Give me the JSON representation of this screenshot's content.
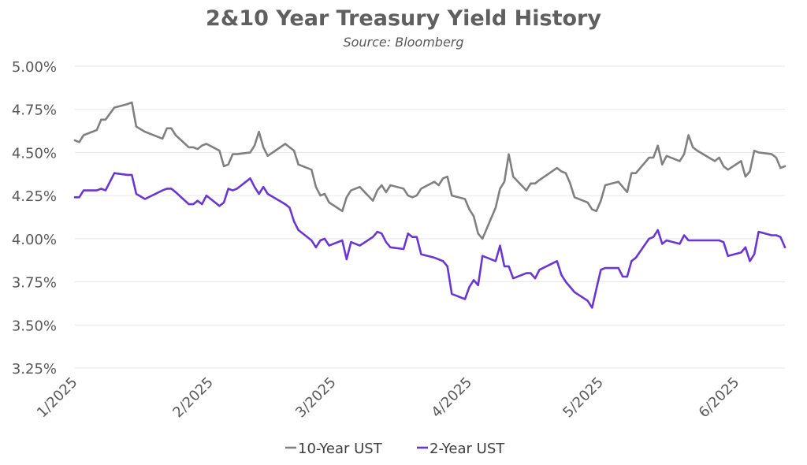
{
  "chart_data": {
    "type": "line",
    "title": "2&10 Year Treasury Yield History",
    "subtitle": "Source: Bloomberg",
    "xlabel": "",
    "ylabel": "",
    "ylim": [
      3.25,
      5.0
    ],
    "y_ticks": [
      "3.25%",
      "3.50%",
      "3.75%",
      "4.00%",
      "4.25%",
      "4.50%",
      "4.75%",
      "5.00%"
    ],
    "y_tick_values": [
      3.25,
      3.5,
      3.75,
      4.0,
      4.25,
      4.5,
      4.75,
      5.0
    ],
    "x_ticks": [
      "1/2025",
      "2/2025",
      "3/2025",
      "4/2025",
      "5/2025",
      "6/2025"
    ],
    "x_tick_dates": [
      "2025-01-01",
      "2025-02-01",
      "2025-03-01",
      "2025-04-01",
      "2025-05-01",
      "2025-06-01"
    ],
    "xlim": [
      "2025-01-01",
      "2025-06-12"
    ],
    "grid": "horizontal",
    "legend_position": "bottom",
    "colors": {
      "ten_year": "#808080",
      "two_year": "#6b35d6",
      "grid": "#e6e6e6",
      "text": "#595959"
    },
    "series": [
      {
        "name": "10-Year UST",
        "x": [
          "2025-01-01",
          "2025-01-02",
          "2025-01-03",
          "2025-01-06",
          "2025-01-07",
          "2025-01-08",
          "2025-01-10",
          "2025-01-13",
          "2025-01-14",
          "2025-01-15",
          "2025-01-17",
          "2025-01-21",
          "2025-01-22",
          "2025-01-23",
          "2025-01-24",
          "2025-01-27",
          "2025-01-28",
          "2025-01-29",
          "2025-01-30",
          "2025-01-31",
          "2025-02-03",
          "2025-02-04",
          "2025-02-05",
          "2025-02-06",
          "2025-02-07",
          "2025-02-10",
          "2025-02-11",
          "2025-02-12",
          "2025-02-13",
          "2025-02-14",
          "2025-02-18",
          "2025-02-19",
          "2025-02-20",
          "2025-02-21",
          "2025-02-24",
          "2025-02-25",
          "2025-02-26",
          "2025-02-27",
          "2025-02-28",
          "2025-03-03",
          "2025-03-04",
          "2025-03-05",
          "2025-03-07",
          "2025-03-10",
          "2025-03-11",
          "2025-03-12",
          "2025-03-13",
          "2025-03-14",
          "2025-03-17",
          "2025-03-18",
          "2025-03-19",
          "2025-03-20",
          "2025-03-21",
          "2025-03-24",
          "2025-03-25",
          "2025-03-26",
          "2025-03-27",
          "2025-03-28",
          "2025-03-31",
          "2025-04-01",
          "2025-04-02",
          "2025-04-03",
          "2025-04-04",
          "2025-04-07",
          "2025-04-08",
          "2025-04-09",
          "2025-04-10",
          "2025-04-11",
          "2025-04-14",
          "2025-04-15",
          "2025-04-16",
          "2025-04-17",
          "2025-04-21",
          "2025-04-22",
          "2025-04-23",
          "2025-04-24",
          "2025-04-25",
          "2025-04-28",
          "2025-04-29",
          "2025-04-30",
          "2025-05-01",
          "2025-05-02",
          "2025-05-05",
          "2025-05-06",
          "2025-05-07",
          "2025-05-08",
          "2025-05-09",
          "2025-05-12",
          "2025-05-13",
          "2025-05-14",
          "2025-05-15",
          "2025-05-16",
          "2025-05-19",
          "2025-05-20",
          "2025-05-21",
          "2025-05-22",
          "2025-05-23",
          "2025-05-27",
          "2025-05-28",
          "2025-05-29",
          "2025-05-30",
          "2025-06-02",
          "2025-06-03",
          "2025-06-04",
          "2025-06-05",
          "2025-06-06",
          "2025-06-09",
          "2025-06-10",
          "2025-06-11",
          "2025-06-12"
        ],
        "values": [
          4.57,
          4.56,
          4.6,
          4.63,
          4.69,
          4.69,
          4.76,
          4.78,
          4.79,
          4.65,
          4.62,
          4.58,
          4.64,
          4.64,
          4.6,
          4.53,
          4.53,
          4.52,
          4.54,
          4.55,
          4.51,
          4.42,
          4.43,
          4.49,
          4.49,
          4.5,
          4.54,
          4.62,
          4.53,
          4.48,
          4.55,
          4.53,
          4.51,
          4.43,
          4.4,
          4.3,
          4.25,
          4.26,
          4.21,
          4.16,
          4.24,
          4.28,
          4.3,
          4.22,
          4.28,
          4.31,
          4.27,
          4.31,
          4.29,
          4.25,
          4.24,
          4.25,
          4.29,
          4.33,
          4.31,
          4.35,
          4.36,
          4.25,
          4.23,
          4.17,
          4.13,
          4.03,
          4.0,
          4.18,
          4.29,
          4.33,
          4.49,
          4.36,
          4.28,
          4.32,
          4.32,
          4.34,
          4.41,
          4.39,
          4.38,
          4.32,
          4.24,
          4.21,
          4.17,
          4.16,
          4.22,
          4.31,
          4.33,
          4.3,
          4.27,
          4.38,
          4.38,
          4.47,
          4.47,
          4.54,
          4.43,
          4.48,
          4.45,
          4.49,
          4.6,
          4.53,
          4.51,
          4.45,
          4.47,
          4.42,
          4.4,
          4.45,
          4.36,
          4.39,
          4.51,
          4.5,
          4.49,
          4.47,
          4.41,
          4.42
        ]
      },
      {
        "name": "2-Year UST",
        "x": [
          "2025-01-01",
          "2025-01-02",
          "2025-01-03",
          "2025-01-06",
          "2025-01-07",
          "2025-01-08",
          "2025-01-10",
          "2025-01-13",
          "2025-01-14",
          "2025-01-15",
          "2025-01-17",
          "2025-01-21",
          "2025-01-22",
          "2025-01-23",
          "2025-01-24",
          "2025-01-27",
          "2025-01-28",
          "2025-01-29",
          "2025-01-30",
          "2025-01-31",
          "2025-02-03",
          "2025-02-04",
          "2025-02-05",
          "2025-02-06",
          "2025-02-07",
          "2025-02-10",
          "2025-02-11",
          "2025-02-12",
          "2025-02-13",
          "2025-02-14",
          "2025-02-18",
          "2025-02-19",
          "2025-02-20",
          "2025-02-21",
          "2025-02-24",
          "2025-02-25",
          "2025-02-26",
          "2025-02-27",
          "2025-02-28",
          "2025-03-03",
          "2025-03-04",
          "2025-03-05",
          "2025-03-07",
          "2025-03-10",
          "2025-03-11",
          "2025-03-12",
          "2025-03-13",
          "2025-03-14",
          "2025-03-17",
          "2025-03-18",
          "2025-03-19",
          "2025-03-20",
          "2025-03-21",
          "2025-03-24",
          "2025-03-25",
          "2025-03-26",
          "2025-03-27",
          "2025-03-28",
          "2025-03-31",
          "2025-04-01",
          "2025-04-02",
          "2025-04-03",
          "2025-04-04",
          "2025-04-07",
          "2025-04-08",
          "2025-04-09",
          "2025-04-10",
          "2025-04-11",
          "2025-04-14",
          "2025-04-15",
          "2025-04-16",
          "2025-04-17",
          "2025-04-21",
          "2025-04-22",
          "2025-04-23",
          "2025-04-24",
          "2025-04-25",
          "2025-04-28",
          "2025-04-29",
          "2025-04-30",
          "2025-05-01",
          "2025-05-02",
          "2025-05-05",
          "2025-05-06",
          "2025-05-07",
          "2025-05-08",
          "2025-05-09",
          "2025-05-12",
          "2025-05-13",
          "2025-05-14",
          "2025-05-15",
          "2025-05-16",
          "2025-05-19",
          "2025-05-20",
          "2025-05-21",
          "2025-05-22",
          "2025-05-23",
          "2025-05-27",
          "2025-05-28",
          "2025-05-29",
          "2025-05-30",
          "2025-06-02",
          "2025-06-03",
          "2025-06-04",
          "2025-06-05",
          "2025-06-06",
          "2025-06-09",
          "2025-06-10",
          "2025-06-11",
          "2025-06-12"
        ],
        "values": [
          4.24,
          4.24,
          4.28,
          4.28,
          4.29,
          4.28,
          4.38,
          4.37,
          4.37,
          4.26,
          4.23,
          4.28,
          4.29,
          4.29,
          4.27,
          4.2,
          4.2,
          4.22,
          4.2,
          4.25,
          4.19,
          4.21,
          4.29,
          4.28,
          4.29,
          4.35,
          4.3,
          4.26,
          4.3,
          4.26,
          4.2,
          4.18,
          4.1,
          4.05,
          3.99,
          3.95,
          3.99,
          4.0,
          3.96,
          3.99,
          3.88,
          3.98,
          3.96,
          4.01,
          4.04,
          4.03,
          3.98,
          3.95,
          3.94,
          4.03,
          4.01,
          4.01,
          3.91,
          3.89,
          3.88,
          3.87,
          3.84,
          3.68,
          3.65,
          3.72,
          3.76,
          3.73,
          3.9,
          3.87,
          3.96,
          3.84,
          3.84,
          3.77,
          3.8,
          3.8,
          3.77,
          3.82,
          3.87,
          3.79,
          3.75,
          3.72,
          3.69,
          3.64,
          3.6,
          3.71,
          3.82,
          3.83,
          3.83,
          3.78,
          3.78,
          3.87,
          3.89,
          4.0,
          4.01,
          4.05,
          3.97,
          3.99,
          3.97,
          4.02,
          3.99,
          3.99,
          3.99,
          3.99,
          3.99,
          3.98,
          3.9,
          3.92,
          3.95,
          3.87,
          3.91,
          4.04,
          4.02,
          4.02,
          4.01,
          3.95
        ]
      }
    ]
  }
}
